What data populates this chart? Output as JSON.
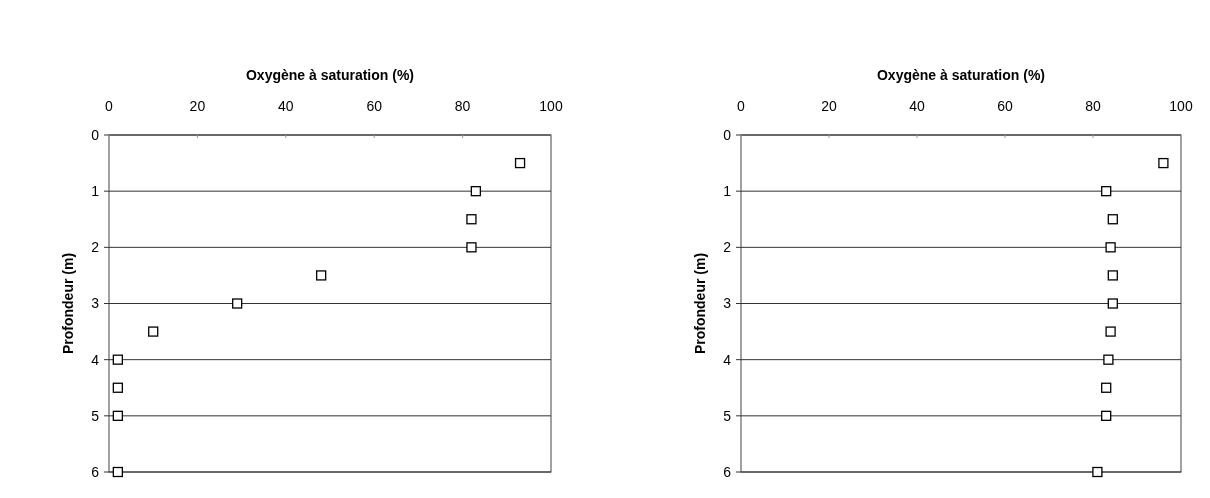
{
  "chart_data": [
    {
      "type": "scatter",
      "xlabel": "Oxygène à saturation (%)",
      "ylabel": "Profondeur (m)",
      "x": [
        93,
        83,
        82,
        82,
        48,
        29,
        10,
        2,
        2,
        2,
        2
      ],
      "values": [
        0.5,
        1,
        1.5,
        2,
        2.5,
        3,
        3.5,
        4,
        4.5,
        5,
        6
      ],
      "color": "#000000",
      "xlim": [
        0,
        100
      ],
      "xticks": [
        0,
        20,
        40,
        60,
        80,
        100
      ],
      "ylim": [
        6,
        0
      ],
      "yticks": [
        0,
        1,
        2,
        3,
        4,
        5,
        6
      ],
      "grid": "y",
      "marker": "square"
    },
    {
      "type": "scatter",
      "xlabel": "Oxygène à saturation (%)",
      "ylabel": "Profondeur (m)",
      "x": [
        96,
        83,
        84.5,
        84,
        84.5,
        84.5,
        84,
        83.5,
        83,
        83,
        81
      ],
      "values": [
        0.5,
        1,
        1.5,
        2,
        2.5,
        3,
        3.5,
        4,
        4.5,
        5,
        6
      ],
      "color": "#000000",
      "xlim": [
        0,
        100
      ],
      "xticks": [
        0,
        20,
        40,
        60,
        80,
        100
      ],
      "ylim": [
        6,
        0
      ],
      "yticks": [
        0,
        1,
        2,
        3,
        4,
        5,
        6
      ],
      "grid": "y",
      "marker": "square"
    }
  ]
}
